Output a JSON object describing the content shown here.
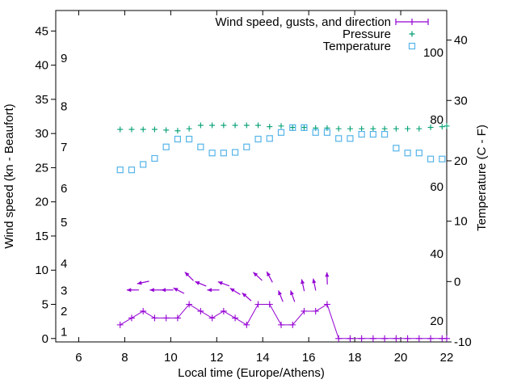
{
  "colors": {
    "wind": "#9400d3",
    "pressure": "#009e73",
    "temperature": "#56b4e9",
    "axis": "#000000",
    "background": "#ffffff"
  },
  "chart_data": {
    "type": "line",
    "x_label": "Local time (Europe/Athens)",
    "y_left_label": "Wind speed (kn - Beaufort)",
    "y_right_label": "Temperature (C - F)",
    "x_range": [
      5,
      22
    ],
    "y_left_range_kn": [
      -0.5,
      48
    ],
    "y_right_range_c": [
      -10,
      44.9
    ],
    "x_ticks": [
      6,
      8,
      10,
      12,
      14,
      16,
      18,
      20,
      22
    ],
    "y_left_ticks_kn": [
      0,
      5,
      10,
      15,
      20,
      25,
      30,
      35,
      40,
      45
    ],
    "beaufort_labels": [
      {
        "bf": "1",
        "kn": 1
      },
      {
        "bf": "2",
        "kn": 4
      },
      {
        "bf": "3",
        "kn": 7
      },
      {
        "bf": "4",
        "kn": 11
      },
      {
        "bf": "5",
        "kn": 17
      },
      {
        "bf": "6",
        "kn": 22
      },
      {
        "bf": "7",
        "kn": 28
      },
      {
        "bf": "8",
        "kn": 34
      },
      {
        "bf": "9",
        "kn": 41
      }
    ],
    "y_right_ticks_c": [
      -10,
      0,
      10,
      20,
      30,
      40
    ],
    "fahrenheit_labels": [
      20,
      40,
      60,
      80,
      100
    ],
    "legend": [
      {
        "label": "Wind speed, gusts, and direction",
        "series": "wind",
        "marker": "errorbar-line"
      },
      {
        "label": "Pressure",
        "series": "pressure",
        "marker": "plus"
      },
      {
        "label": "Temperature",
        "series": "temperature",
        "marker": "square"
      }
    ],
    "x": [
      7.8,
      8.3,
      8.8,
      9.3,
      9.8,
      10.3,
      10.8,
      11.3,
      11.8,
      12.3,
      12.8,
      13.3,
      13.8,
      14.3,
      14.8,
      15.3,
      15.8,
      16.3,
      16.8,
      17.3,
      17.8,
      18.3,
      18.8,
      19.3,
      19.8,
      20.3,
      20.8,
      21.3,
      21.8,
      22.0
    ],
    "series": [
      {
        "name": "Wind speed",
        "unit": "kn",
        "axis": "left",
        "marker": "plus",
        "line": true,
        "color": "wind",
        "values": [
          2,
          3,
          4,
          3,
          3,
          3,
          5,
          4,
          3,
          4,
          3,
          2,
          5,
          5,
          2,
          2,
          4,
          4,
          5,
          0,
          0,
          0,
          0,
          0,
          0,
          0,
          0,
          0,
          0,
          0
        ]
      },
      {
        "name": "Pressure",
        "unit": "plotted on left kn scale (no pressure axis shown)",
        "axis": "left",
        "marker": "plus",
        "line": false,
        "color": "pressure",
        "values": [
          30.6,
          30.6,
          30.6,
          30.6,
          30.5,
          30.4,
          30.7,
          31.2,
          31.2,
          31.2,
          31.2,
          31.2,
          31.2,
          31.0,
          31.1,
          30.9,
          30.9,
          30.8,
          30.8,
          30.7,
          30.7,
          30.7,
          30.7,
          30.7,
          30.7,
          30.7,
          30.7,
          30.9,
          31.0,
          31.1
        ]
      },
      {
        "name": "Temperature",
        "unit": "C",
        "axis": "right",
        "marker": "square",
        "line": false,
        "color": "temperature",
        "values": [
          18.5,
          18.5,
          19.4,
          20.4,
          22.3,
          23.6,
          23.6,
          22.3,
          21.3,
          21.3,
          21.4,
          22.3,
          23.6,
          23.7,
          24.7,
          25.5,
          25.5,
          24.7,
          24.7,
          23.7,
          23.7,
          24.4,
          24.4,
          24.4,
          22.1,
          21.3,
          21.3,
          20.3,
          20.3,
          null
        ]
      }
    ],
    "wind_direction_arrows": [
      {
        "t": 8.35,
        "kn": 7.1,
        "dir_deg_0east_90up": 180
      },
      {
        "t": 8.8,
        "kn": 8.2,
        "dir_deg_0east_90up": 192
      },
      {
        "t": 9.35,
        "kn": 7.1,
        "dir_deg_0east_90up": 180
      },
      {
        "t": 9.85,
        "kn": 7.1,
        "dir_deg_0east_90up": 180
      },
      {
        "t": 10.35,
        "kn": 7.0,
        "dir_deg_0east_90up": 153
      },
      {
        "t": 10.8,
        "kn": 9.1,
        "dir_deg_0east_90up": 135
      },
      {
        "t": 11.3,
        "kn": 8.0,
        "dir_deg_0east_90up": 158
      },
      {
        "t": 11.85,
        "kn": 7.1,
        "dir_deg_0east_90up": 180
      },
      {
        "t": 12.3,
        "kn": 8.0,
        "dir_deg_0east_90up": 160
      },
      {
        "t": 12.8,
        "kn": 6.9,
        "dir_deg_0east_90up": 148
      },
      {
        "t": 13.3,
        "kn": 6.1,
        "dir_deg_0east_90up": 139
      },
      {
        "t": 13.78,
        "kn": 9.1,
        "dir_deg_0east_90up": 137
      },
      {
        "t": 14.3,
        "kn": 9.0,
        "dir_deg_0east_90up": 118
      },
      {
        "t": 14.78,
        "kn": 6.2,
        "dir_deg_0east_90up": 112
      },
      {
        "t": 15.3,
        "kn": 6.2,
        "dir_deg_0east_90up": 110
      },
      {
        "t": 15.75,
        "kn": 7.8,
        "dir_deg_0east_90up": 102
      },
      {
        "t": 16.25,
        "kn": 7.9,
        "dir_deg_0east_90up": 102
      },
      {
        "t": 16.8,
        "kn": 8.8,
        "dir_deg_0east_90up": 92
      }
    ]
  }
}
